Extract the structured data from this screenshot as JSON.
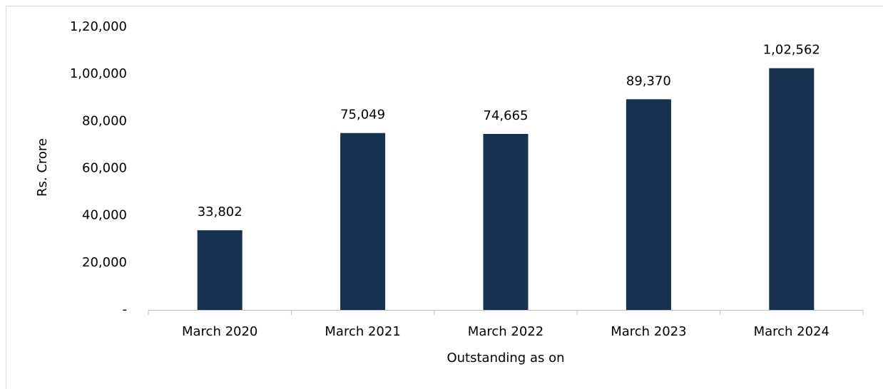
{
  "chart_data": {
    "type": "bar",
    "categories": [
      "March 2020",
      "March 2021",
      "March 2022",
      "March 2023",
      "March 2024"
    ],
    "values": [
      33802,
      75049,
      74665,
      89370,
      102562
    ],
    "value_labels": [
      "33,802",
      "75,049",
      "74,665",
      "89,370",
      "1,02,562"
    ],
    "color": "#17324f",
    "xlabel": "Outstanding as on",
    "ylabel": "Rs. Crore",
    "ylim": [
      0,
      120000
    ],
    "yticks": [
      {
        "value": 0,
        "label": "-"
      },
      {
        "value": 20000,
        "label": "20,000"
      },
      {
        "value": 40000,
        "label": "40,000"
      },
      {
        "value": 60000,
        "label": "60,000"
      },
      {
        "value": 80000,
        "label": "80,000"
      },
      {
        "value": 100000,
        "label": "1,00,000"
      },
      {
        "value": 120000,
        "label": "1,20,000"
      }
    ],
    "grid": false
  }
}
